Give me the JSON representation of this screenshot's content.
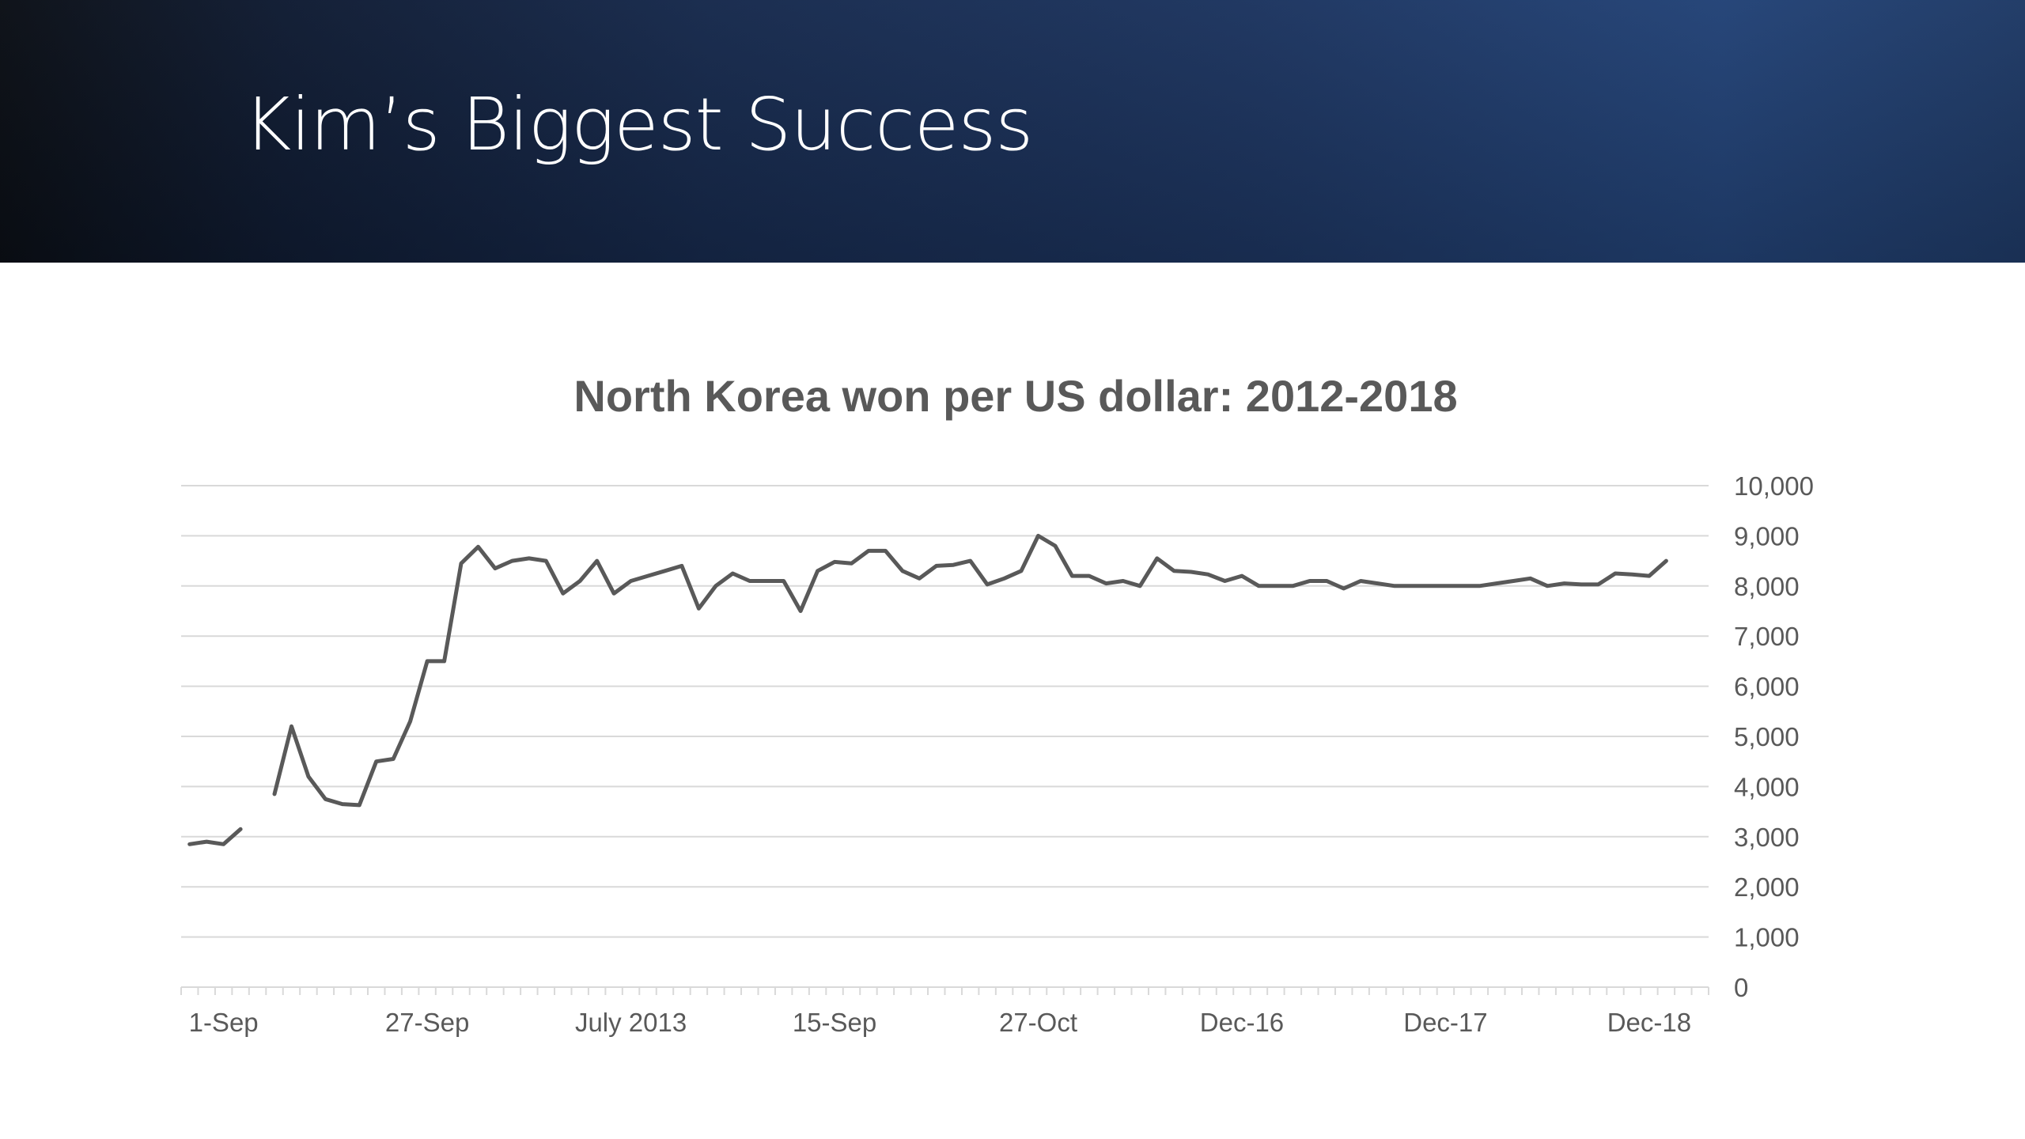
{
  "slide": {
    "title": "Kim’s Biggest Success"
  },
  "colors": {
    "header_dark": "#0b0f16",
    "header_blue": "#234377",
    "line": "#595959",
    "grid": "#d9d9d9",
    "text": "#595959"
  },
  "chart_data": {
    "type": "line",
    "title": "North Korea won per US dollar: 2012-2018",
    "xlabel": "",
    "ylabel": "",
    "ylim": [
      0,
      10000
    ],
    "y_ticks": [
      0,
      1000,
      2000,
      3000,
      4000,
      5000,
      6000,
      7000,
      8000,
      9000,
      10000
    ],
    "y_tick_labels": [
      "0",
      "1,000",
      "2,000",
      "3,000",
      "4,000",
      "5,000",
      "6,000",
      "7,000",
      "8,000",
      "9,000",
      "10,000"
    ],
    "y_axis_side": "right",
    "grid": true,
    "legend": "none",
    "num_categories": 90,
    "x_tick_labels": [
      {
        "index": 2,
        "label": "1-Sep"
      },
      {
        "index": 14,
        "label": "27-Sep"
      },
      {
        "index": 26,
        "label": "July 2013"
      },
      {
        "index": 38,
        "label": "15-Sep"
      },
      {
        "index": 50,
        "label": "27-Oct"
      },
      {
        "index": 62,
        "label": "Dec-16"
      },
      {
        "index": 74,
        "label": "Dec-17"
      },
      {
        "index": 86,
        "label": "Dec-18"
      }
    ],
    "series": [
      {
        "values": [
          2850,
          2900,
          2850,
          3150,
          null,
          3850,
          5200,
          4200,
          3750,
          3650,
          3630,
          4500,
          4550,
          5300,
          6500,
          6500,
          8450,
          8780,
          8350,
          8500,
          8550,
          8500,
          7850,
          8100,
          8500,
          7850,
          8100,
          8200,
          8300,
          8400,
          7550,
          8000,
          8250,
          8100,
          8100,
          8100,
          7500,
          8300,
          8480,
          8450,
          8700,
          8700,
          8300,
          8150,
          8400,
          8420,
          8500,
          8030,
          8150,
          8300,
          9000,
          8800,
          8200,
          8200,
          8050,
          8100,
          8000,
          8550,
          8300,
          8280,
          8230,
          8100,
          8200,
          8000,
          8000,
          8000,
          8100,
          8100,
          7950,
          8100,
          8050,
          8000,
          8000,
          8000,
          8000,
          8000,
          8000,
          8050,
          8100,
          8150,
          8000,
          8050,
          8030,
          8030,
          8250,
          8230,
          8200,
          8500,
          null,
          null
        ]
      }
    ]
  }
}
